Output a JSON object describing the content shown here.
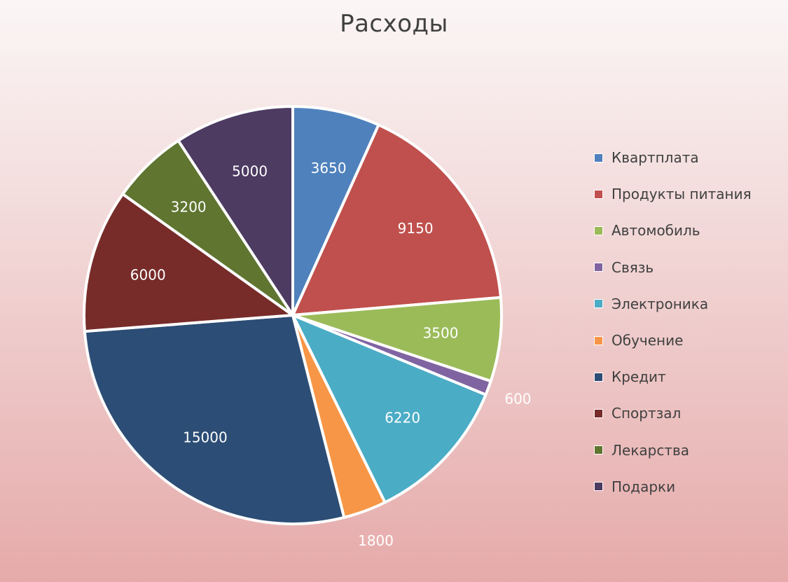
{
  "chart_data": {
    "type": "pie",
    "title": "Расходы",
    "legend_position": "right",
    "slices": [
      {
        "label": "Квартплата",
        "value": 3650,
        "color": "#4f81bd"
      },
      {
        "label": "Продукты питания",
        "value": 9150,
        "color": "#c0504d"
      },
      {
        "label": "Автомобиль",
        "value": 3500,
        "color": "#9bbb59"
      },
      {
        "label": "Связь",
        "value": 600,
        "color": "#8064a2"
      },
      {
        "label": "Электроника",
        "value": 6220,
        "color": "#4bacc6"
      },
      {
        "label": "Обучение",
        "value": 1800,
        "color": "#f79646"
      },
      {
        "label": "Кредит",
        "value": 15000,
        "color": "#2c4d75"
      },
      {
        "label": "Спортзал",
        "value": 6000,
        "color": "#772c2a"
      },
      {
        "label": "Лекарства",
        "value": 3200,
        "color": "#5f7530"
      },
      {
        "label": "Подарки",
        "value": 5000,
        "color": "#4d3b62"
      }
    ]
  }
}
